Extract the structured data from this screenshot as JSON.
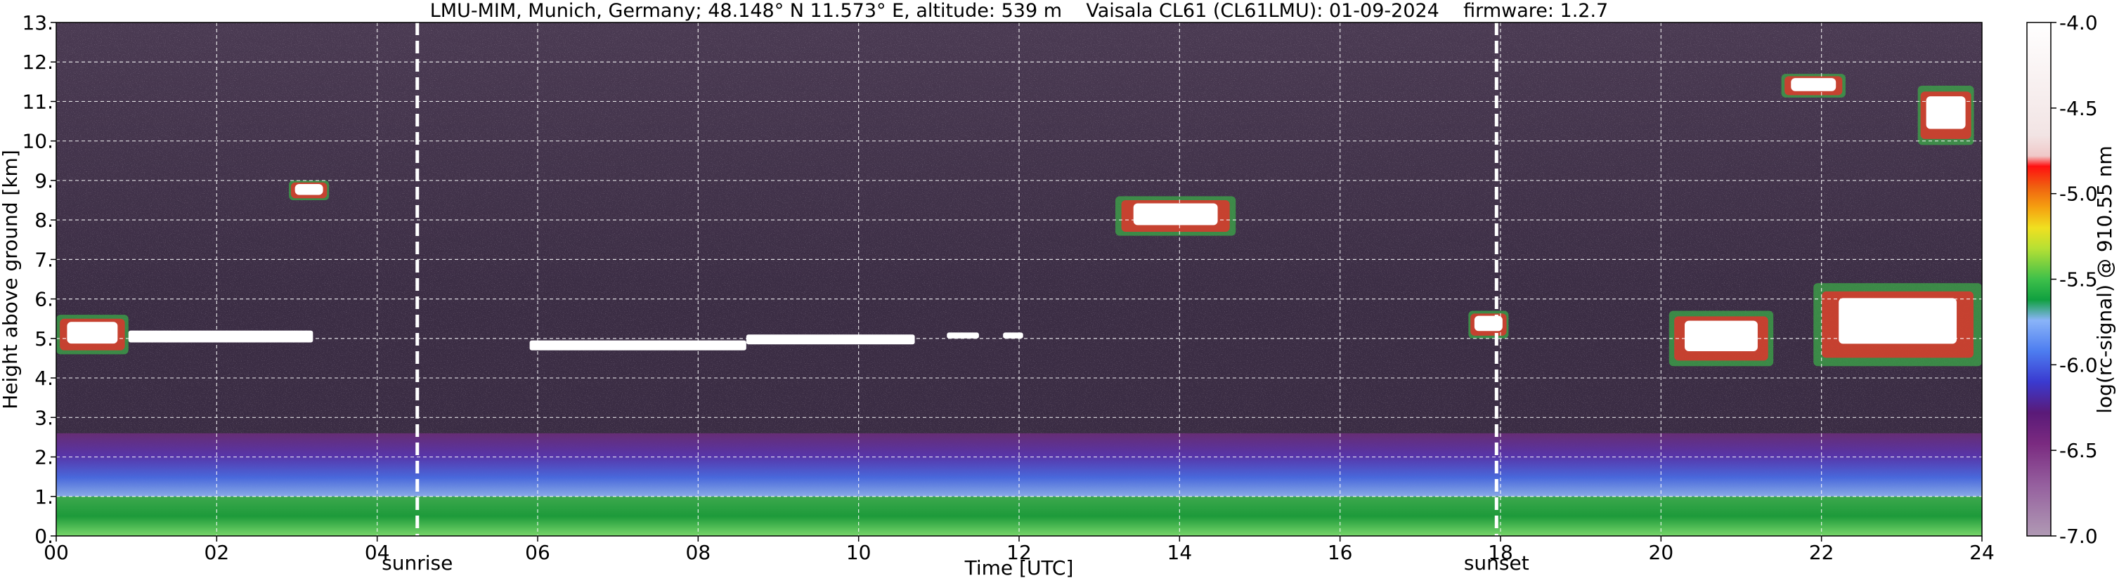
{
  "chart_data": {
    "type": "heatmap",
    "title": "LMU-MIM, Munich, Germany; 48.148° N 11.573° E, altitude: 539 m    Vaisala CL61 (CL61LMU): 01-09-2024    firmware: 1.2.7",
    "xlabel": "Time [UTC]",
    "ylabel": "Height above ground [km]",
    "xlim": [
      0,
      24
    ],
    "ylim": [
      0,
      13
    ],
    "x_ticks": [
      0,
      2,
      4,
      6,
      8,
      10,
      12,
      14,
      16,
      18,
      20,
      22,
      24
    ],
    "x_tick_labels": [
      "00",
      "02",
      "04",
      "06",
      "08",
      "10",
      "12",
      "14",
      "16",
      "18",
      "20",
      "22",
      "24"
    ],
    "y_ticks": [
      0,
      1,
      2,
      3,
      4,
      5,
      6,
      7,
      8,
      9,
      10,
      11,
      12,
      13
    ],
    "y_tick_labels": [
      "0.",
      "1.",
      "2.",
      "3.",
      "4.",
      "5.",
      "6.",
      "7.",
      "8.",
      "9.",
      "10.",
      "11.",
      "12.",
      "13."
    ],
    "grid": true,
    "markers": [
      {
        "label": "sunrise",
        "time": 4.5
      },
      {
        "label": "sunset",
        "time": 17.95
      }
    ],
    "colorbar": {
      "label": "log(rc-signal) @ 910.55 nm",
      "range": [
        -7.0,
        -4.0
      ],
      "ticks": [
        -4.0,
        -4.5,
        -5.0,
        -5.5,
        -6.0,
        -6.5,
        -7.0
      ],
      "tick_labels": [
        "-4.0",
        "-4.5",
        "-5.0",
        "-5.5",
        "-6.0",
        "-6.5",
        "-7.0"
      ]
    },
    "features": [
      {
        "kind": "cloud",
        "t_start": 0.0,
        "t_end": 0.9,
        "h_low": 4.6,
        "h_high": 5.6
      },
      {
        "kind": "cloud",
        "t_start": 0.9,
        "t_end": 3.2,
        "h_low": 4.9,
        "h_high": 5.2
      },
      {
        "kind": "cloud",
        "t_start": 5.9,
        "t_end": 8.6,
        "h_low": 4.7,
        "h_high": 4.95
      },
      {
        "kind": "cloud",
        "t_start": 8.6,
        "t_end": 10.7,
        "h_low": 4.85,
        "h_high": 5.1
      },
      {
        "kind": "cloud",
        "t_start": 11.1,
        "t_end": 11.5,
        "h_low": 5.0,
        "h_high": 5.15
      },
      {
        "kind": "cloud",
        "t_start": 11.8,
        "t_end": 12.05,
        "h_low": 5.0,
        "h_high": 5.15
      },
      {
        "kind": "cloud",
        "t_start": 17.6,
        "t_end": 18.1,
        "h_low": 5.0,
        "h_high": 5.7
      },
      {
        "kind": "cloud",
        "t_start": 20.1,
        "t_end": 21.4,
        "h_low": 4.3,
        "h_high": 5.7
      },
      {
        "kind": "cloud",
        "t_start": 21.9,
        "t_end": 24.0,
        "h_low": 4.3,
        "h_high": 6.4
      },
      {
        "kind": "cloud",
        "t_start": 2.9,
        "t_end": 3.4,
        "h_low": 8.5,
        "h_high": 9.0
      },
      {
        "kind": "cloud",
        "t_start": 13.2,
        "t_end": 14.7,
        "h_low": 7.6,
        "h_high": 8.6
      },
      {
        "kind": "cloud",
        "t_start": 21.5,
        "t_end": 22.3,
        "h_low": 11.1,
        "h_high": 11.7
      },
      {
        "kind": "cloud",
        "t_start": 23.2,
        "t_end": 23.9,
        "h_low": 9.9,
        "h_high": 11.4
      },
      {
        "kind": "aerosol_layer",
        "t_start": 0,
        "t_end": 24,
        "h_low": 0.0,
        "h_high": 1.0
      },
      {
        "kind": "boundary_layer",
        "t_start": 0,
        "t_end": 24,
        "h_low": 1.0,
        "h_high": 2.6
      }
    ]
  }
}
